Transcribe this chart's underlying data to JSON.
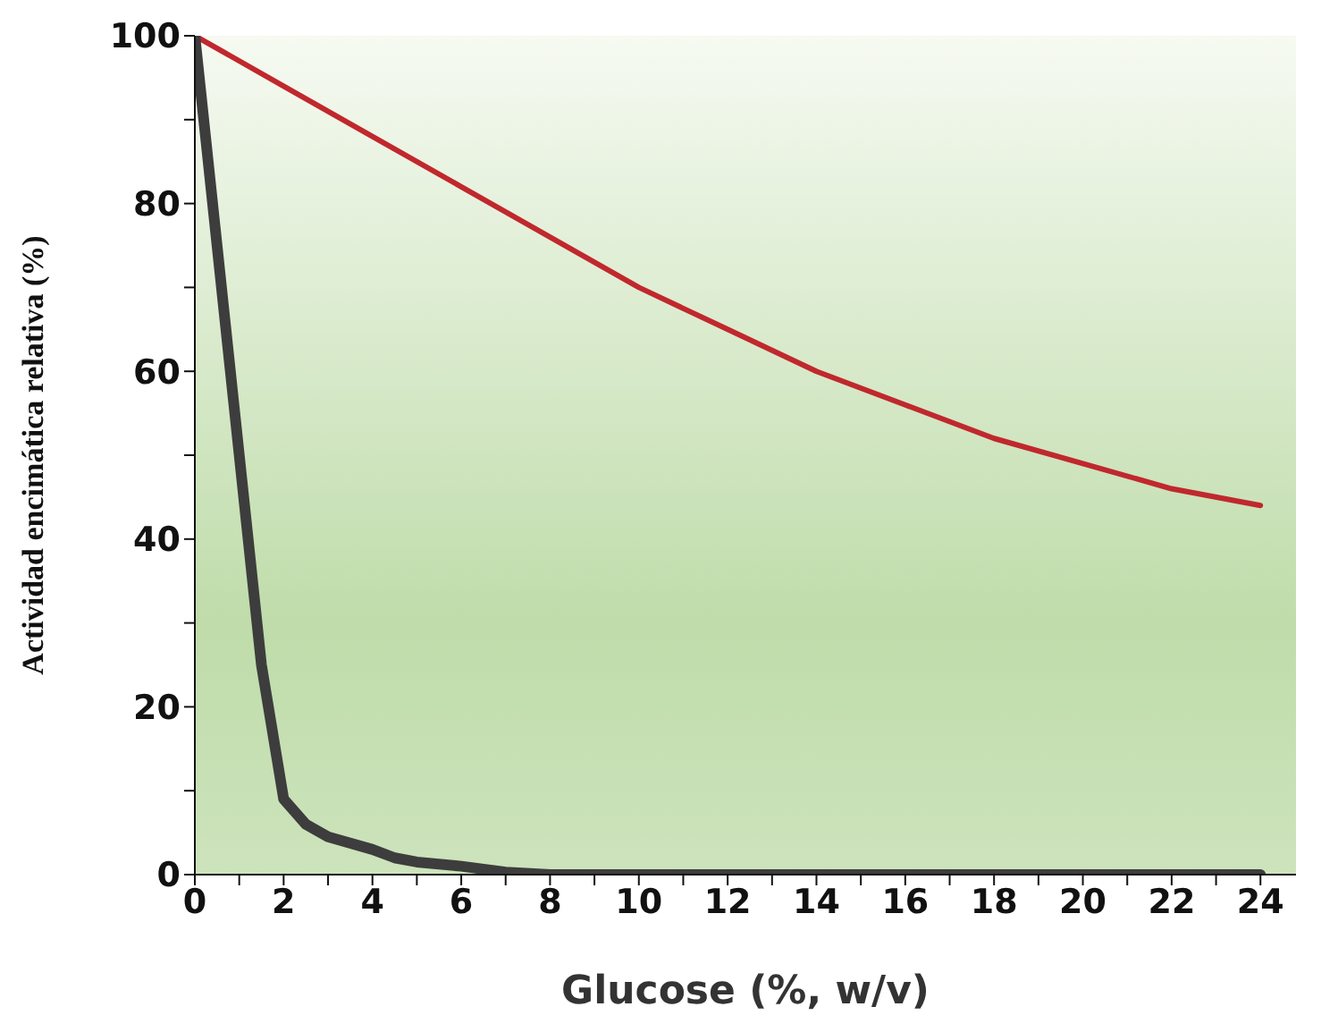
{
  "chart_data": {
    "type": "line",
    "xlabel": "Glucose (%, w/v)",
    "ylabel": "Actividad encimática relativa (%)",
    "xlim": [
      0,
      24.8
    ],
    "ylim": [
      0,
      100
    ],
    "xticks": [
      0,
      {
        "value": 1,
        "label": null
      },
      2,
      {
        "value": 3,
        "label": null
      },
      4,
      {
        "value": 5,
        "label": null
      },
      6,
      {
        "value": 7,
        "label": null
      },
      8,
      {
        "value": 9,
        "label": null
      },
      10,
      {
        "value": 11,
        "label": null
      },
      12,
      {
        "value": 13,
        "label": null
      },
      14,
      {
        "value": 15,
        "label": null
      },
      16,
      {
        "value": 17,
        "label": null
      },
      18,
      {
        "value": 19,
        "label": null
      },
      20,
      {
        "value": 21,
        "label": null
      },
      22,
      {
        "value": 23,
        "label": null
      },
      24
    ],
    "yticks": [
      0,
      {
        "value": 10,
        "label": null
      },
      20,
      {
        "value": 30,
        "label": null
      },
      40,
      {
        "value": 50,
        "label": null
      },
      60,
      {
        "value": 70,
        "label": null
      },
      80,
      {
        "value": 90,
        "label": null
      },
      100
    ],
    "grid": false,
    "legend": false,
    "marker": "none",
    "line_style": "solid",
    "series": [
      {
        "color": "#c0282d",
        "x": [
          0,
          2,
          4,
          6,
          8,
          10,
          12,
          14,
          16,
          18,
          20,
          22,
          24
        ],
        "values": [
          100,
          94,
          88,
          82,
          76,
          70,
          65,
          60,
          56,
          52,
          49,
          46,
          44
        ]
      },
      {
        "color": "#3d3d3d",
        "x": [
          0,
          0.5,
          1,
          1.5,
          2,
          2.5,
          3,
          4,
          4.5,
          5,
          6,
          7,
          8,
          10,
          12,
          14,
          16,
          18,
          20,
          22,
          24
        ],
        "values": [
          100,
          75,
          50,
          25,
          9,
          6,
          4.5,
          3,
          2,
          1.5,
          1,
          0.3,
          0,
          0,
          0,
          0,
          0,
          0,
          0,
          0,
          0
        ]
      }
    ]
  }
}
